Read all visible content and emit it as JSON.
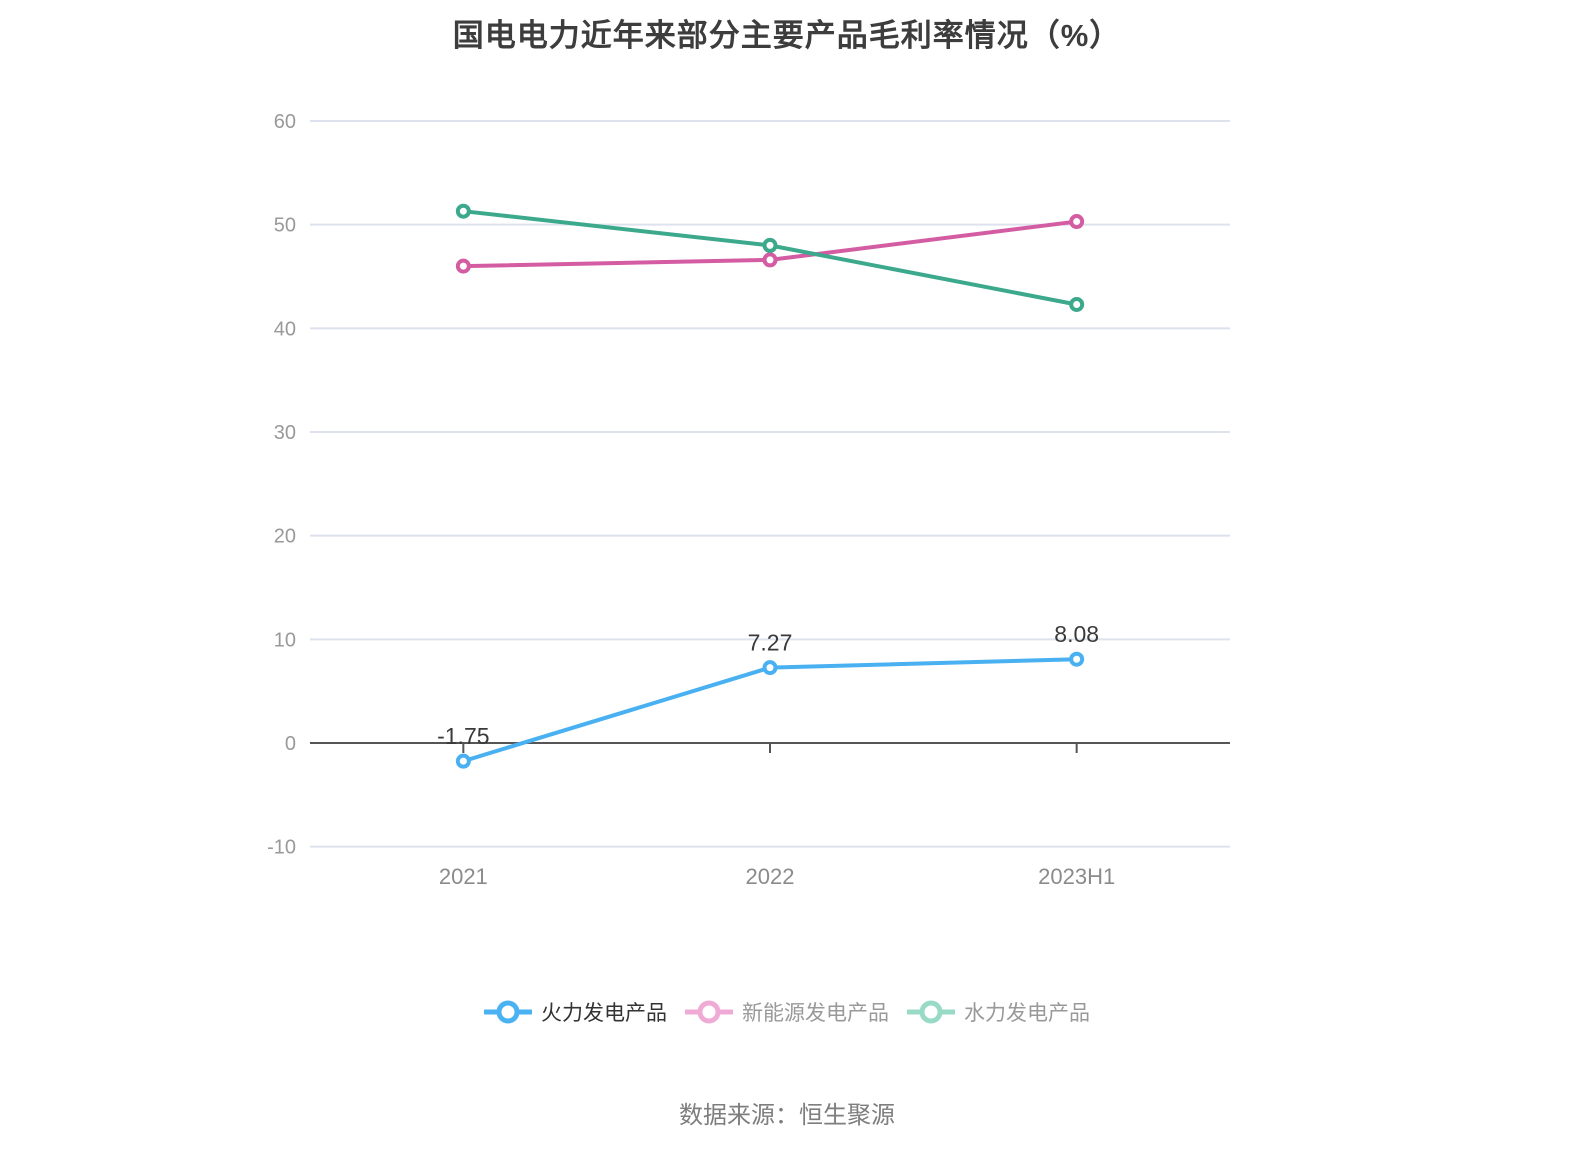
{
  "title": "国电电力近年来部分主要产品毛利率情况（%）",
  "source": "数据来源：恒生聚源",
  "colors": {
    "background": "#ffffff",
    "title_text": "#3d3d3d",
    "grid_line": "#dde2ee",
    "zero_axis_line": "#555555",
    "y_axis_label": "#999999",
    "x_axis_label": "#8b8b8b",
    "data_label": "#3a3a3a",
    "source_text": "#7e7e7e"
  },
  "chart_data": {
    "type": "line",
    "categories": [
      "2021",
      "2022",
      "2023H1"
    ],
    "series": [
      {
        "name": "火力发电产品",
        "color": "#49b1f1",
        "legend_icon_color": "#4ab2f2",
        "legend_label_color": "#333333",
        "values": [
          -1.75,
          7.27,
          8.08
        ],
        "point_labels": [
          "-1.75",
          "7.27",
          "8.08"
        ],
        "show_labels": true
      },
      {
        "name": "新能源发电产品",
        "color": "#d45ca2",
        "legend_icon_color": "#efabd5",
        "legend_label_color": "#999999",
        "values": [
          46.0,
          46.6,
          50.3
        ],
        "point_labels": [],
        "show_labels": false
      },
      {
        "name": "水力发电产品",
        "color": "#3ca98c",
        "legend_icon_color": "#98dac5",
        "legend_label_color": "#999999",
        "values": [
          51.3,
          48.0,
          42.3
        ],
        "point_labels": [],
        "show_labels": false
      }
    ],
    "ylim": [
      -10,
      60
    ],
    "yticks": [
      60,
      50,
      40,
      30,
      20,
      10,
      0,
      -10
    ],
    "grid": true,
    "legend_position": "bottom",
    "marker": "hollow-circle"
  }
}
